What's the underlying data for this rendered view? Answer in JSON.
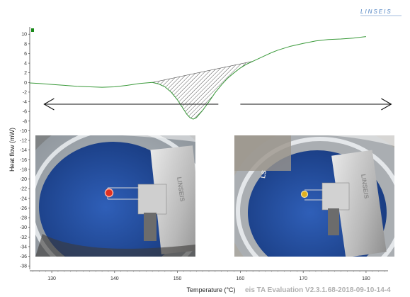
{
  "brand": "LINSEIS",
  "footer_text": "eis TA Evaluation V2.3.1.68-2018-09-10-14-4",
  "photos": {
    "left": {
      "indicator_color": "#e03020",
      "plate_text": "LINSEIS"
    },
    "right": {
      "indicator_color": "#e0b020",
      "plate_text": "LINSEIS",
      "body_text": "LS"
    }
  },
  "chart_data": {
    "type": "line",
    "xlabel": "Temperature (°C)",
    "ylabel": "Heat flow (mW)",
    "xlim": [
      126.5,
      183.5
    ],
    "ylim": [
      -39,
      11.5
    ],
    "x_ticks": [
      "130",
      "140",
      "150",
      "160",
      "170",
      "180"
    ],
    "y_ticks": [
      "10",
      "8",
      "6",
      "4",
      "2",
      "0",
      "-2",
      "-4",
      "-6",
      "-8",
      "-10",
      "-12",
      "-14",
      "-16",
      "-18",
      "-20",
      "-22",
      "-24",
      "-26",
      "-28",
      "-30",
      "-32",
      "-34",
      "-36",
      "-38"
    ],
    "grid": false,
    "series_color": "#3a9a3a",
    "series": [
      {
        "x": [
          126.5,
          128,
          130,
          132,
          134,
          136,
          138,
          140,
          142,
          144,
          146,
          147,
          148,
          149,
          150,
          151,
          151.5,
          152,
          152.5,
          153,
          154,
          155,
          156,
          157,
          158,
          159,
          160,
          161,
          162,
          163,
          164,
          165,
          166,
          168,
          170,
          172,
          174,
          176,
          178,
          180
        ],
        "y": [
          -0.1,
          -0.2,
          -0.4,
          -0.6,
          -0.8,
          -0.9,
          -1.0,
          -0.9,
          -0.6,
          -0.2,
          0.0,
          -0.3,
          -0.9,
          -2.0,
          -3.6,
          -5.6,
          -6.6,
          -7.3,
          -7.6,
          -7.3,
          -5.8,
          -4.0,
          -2.1,
          -0.5,
          0.9,
          2.0,
          3.0,
          3.8,
          4.4,
          5.0,
          5.6,
          6.2,
          6.7,
          7.5,
          8.1,
          8.6,
          8.9,
          9.0,
          9.2,
          9.5
        ]
      }
    ],
    "hatched_region": {
      "x_start": 146,
      "x_end": 162
    },
    "annotations": [
      {
        "type": "arrow",
        "direction": "left",
        "x_from": 156.5,
        "x_to": 128.8,
        "y": -4.5
      },
      {
        "type": "arrow",
        "direction": "right",
        "x_from": 160,
        "x_to": 184,
        "y": -4.5
      }
    ]
  }
}
